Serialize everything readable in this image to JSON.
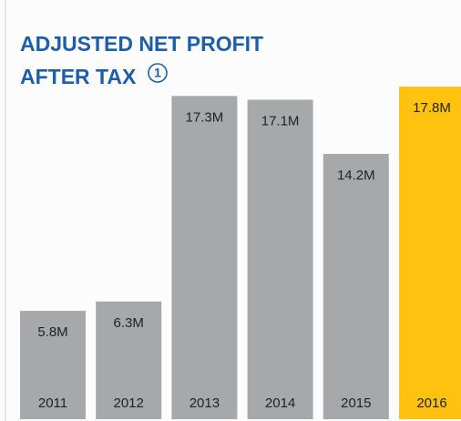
{
  "chart_data": {
    "type": "bar",
    "title": [
      "ADJUSTED NET PROFIT",
      "AFTER TAX"
    ],
    "footnote_marker": "1",
    "categories": [
      "2011",
      "2012",
      "2013",
      "2014",
      "2015",
      "2016"
    ],
    "values": [
      5.8,
      6.3,
      17.3,
      17.1,
      14.2,
      17.8
    ],
    "value_labels": [
      "5.8M",
      "6.3M",
      "17.3M",
      "17.1M",
      "14.2M",
      "17.8M"
    ],
    "colors": [
      "#a7a8aa",
      "#a7a8aa",
      "#a7a8aa",
      "#a7a8aa",
      "#a7a8aa",
      "#ffc20e"
    ]
  }
}
